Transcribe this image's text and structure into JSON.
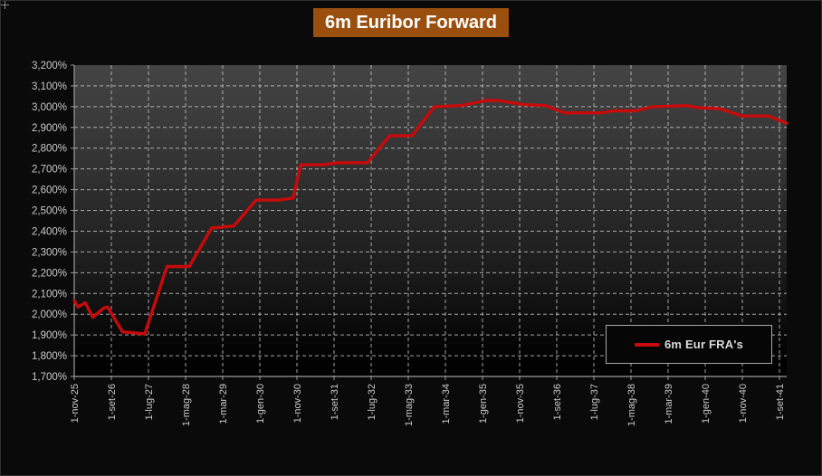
{
  "title": "6m Euribor Forward",
  "legend": {
    "label": "6m Eur FRA's"
  },
  "colors": {
    "background": "#0A0A0A",
    "title_bg": "#9A4F0E",
    "line": "#C80A0A",
    "axis": "#9B9B9B",
    "grid": "#C0C0C0",
    "label": "#C9C9C9"
  },
  "chart_data": {
    "type": "line",
    "title": "6m Euribor Forward",
    "x_unit": "months since 1-nov-25",
    "x_tick_step_months": 10,
    "x_tick_labels": [
      "1-nov-25",
      "1-set-26",
      "1-lug-27",
      "1-mag-28",
      "1-mar-29",
      "1-gen-30",
      "1-nov-30",
      "1-set-31",
      "1-lug-32",
      "1-mag-33",
      "1-mar-34",
      "1-gen-35",
      "1-nov-35",
      "1-set-36",
      "1-lug-37",
      "1-mag-38",
      "1-mar-39",
      "1-gen-40",
      "1-nov-40",
      "1-set-41"
    ],
    "y_tick_labels": [
      "3,200%",
      "3,100%",
      "3,000%",
      "2,900%",
      "2,800%",
      "2,700%",
      "2,600%",
      "2,500%",
      "2,400%",
      "2,300%",
      "2,200%",
      "2,100%",
      "2,000%",
      "1,900%",
      "1,800%",
      "1,700%"
    ],
    "y_axis": {
      "min": 1.7,
      "max": 3.2,
      "step": 0.1
    },
    "grid": "dashed",
    "legend_position": "inside-bottom-right",
    "series": [
      {
        "name": "6m Eur FRA's",
        "color": "#C80A0A",
        "points": [
          [
            0,
            2.065
          ],
          [
            1,
            2.035
          ],
          [
            3,
            2.055
          ],
          [
            5,
            1.985
          ],
          [
            8,
            2.03
          ],
          [
            9,
            2.035
          ],
          [
            13,
            1.915
          ],
          [
            19,
            1.905
          ],
          [
            25,
            2.23
          ],
          [
            31,
            2.23
          ],
          [
            37,
            2.415
          ],
          [
            43,
            2.425
          ],
          [
            49,
            2.55
          ],
          [
            55,
            2.55
          ],
          [
            59,
            2.56
          ],
          [
            61,
            2.72
          ],
          [
            67,
            2.72
          ],
          [
            71,
            2.73
          ],
          [
            79,
            2.73
          ],
          [
            85,
            2.86
          ],
          [
            91,
            2.86
          ],
          [
            97,
            3.0
          ],
          [
            104,
            3.005
          ],
          [
            111,
            3.03
          ],
          [
            114,
            3.03
          ],
          [
            121,
            3.01
          ],
          [
            127,
            3.005
          ],
          [
            132,
            2.97
          ],
          [
            142,
            2.97
          ],
          [
            145,
            2.98
          ],
          [
            151,
            2.98
          ],
          [
            156,
            3.0
          ],
          [
            165,
            3.005
          ],
          [
            168,
            2.995
          ],
          [
            174,
            2.99
          ],
          [
            180,
            2.955
          ],
          [
            187,
            2.955
          ],
          [
            192,
            2.92
          ]
        ]
      }
    ]
  }
}
